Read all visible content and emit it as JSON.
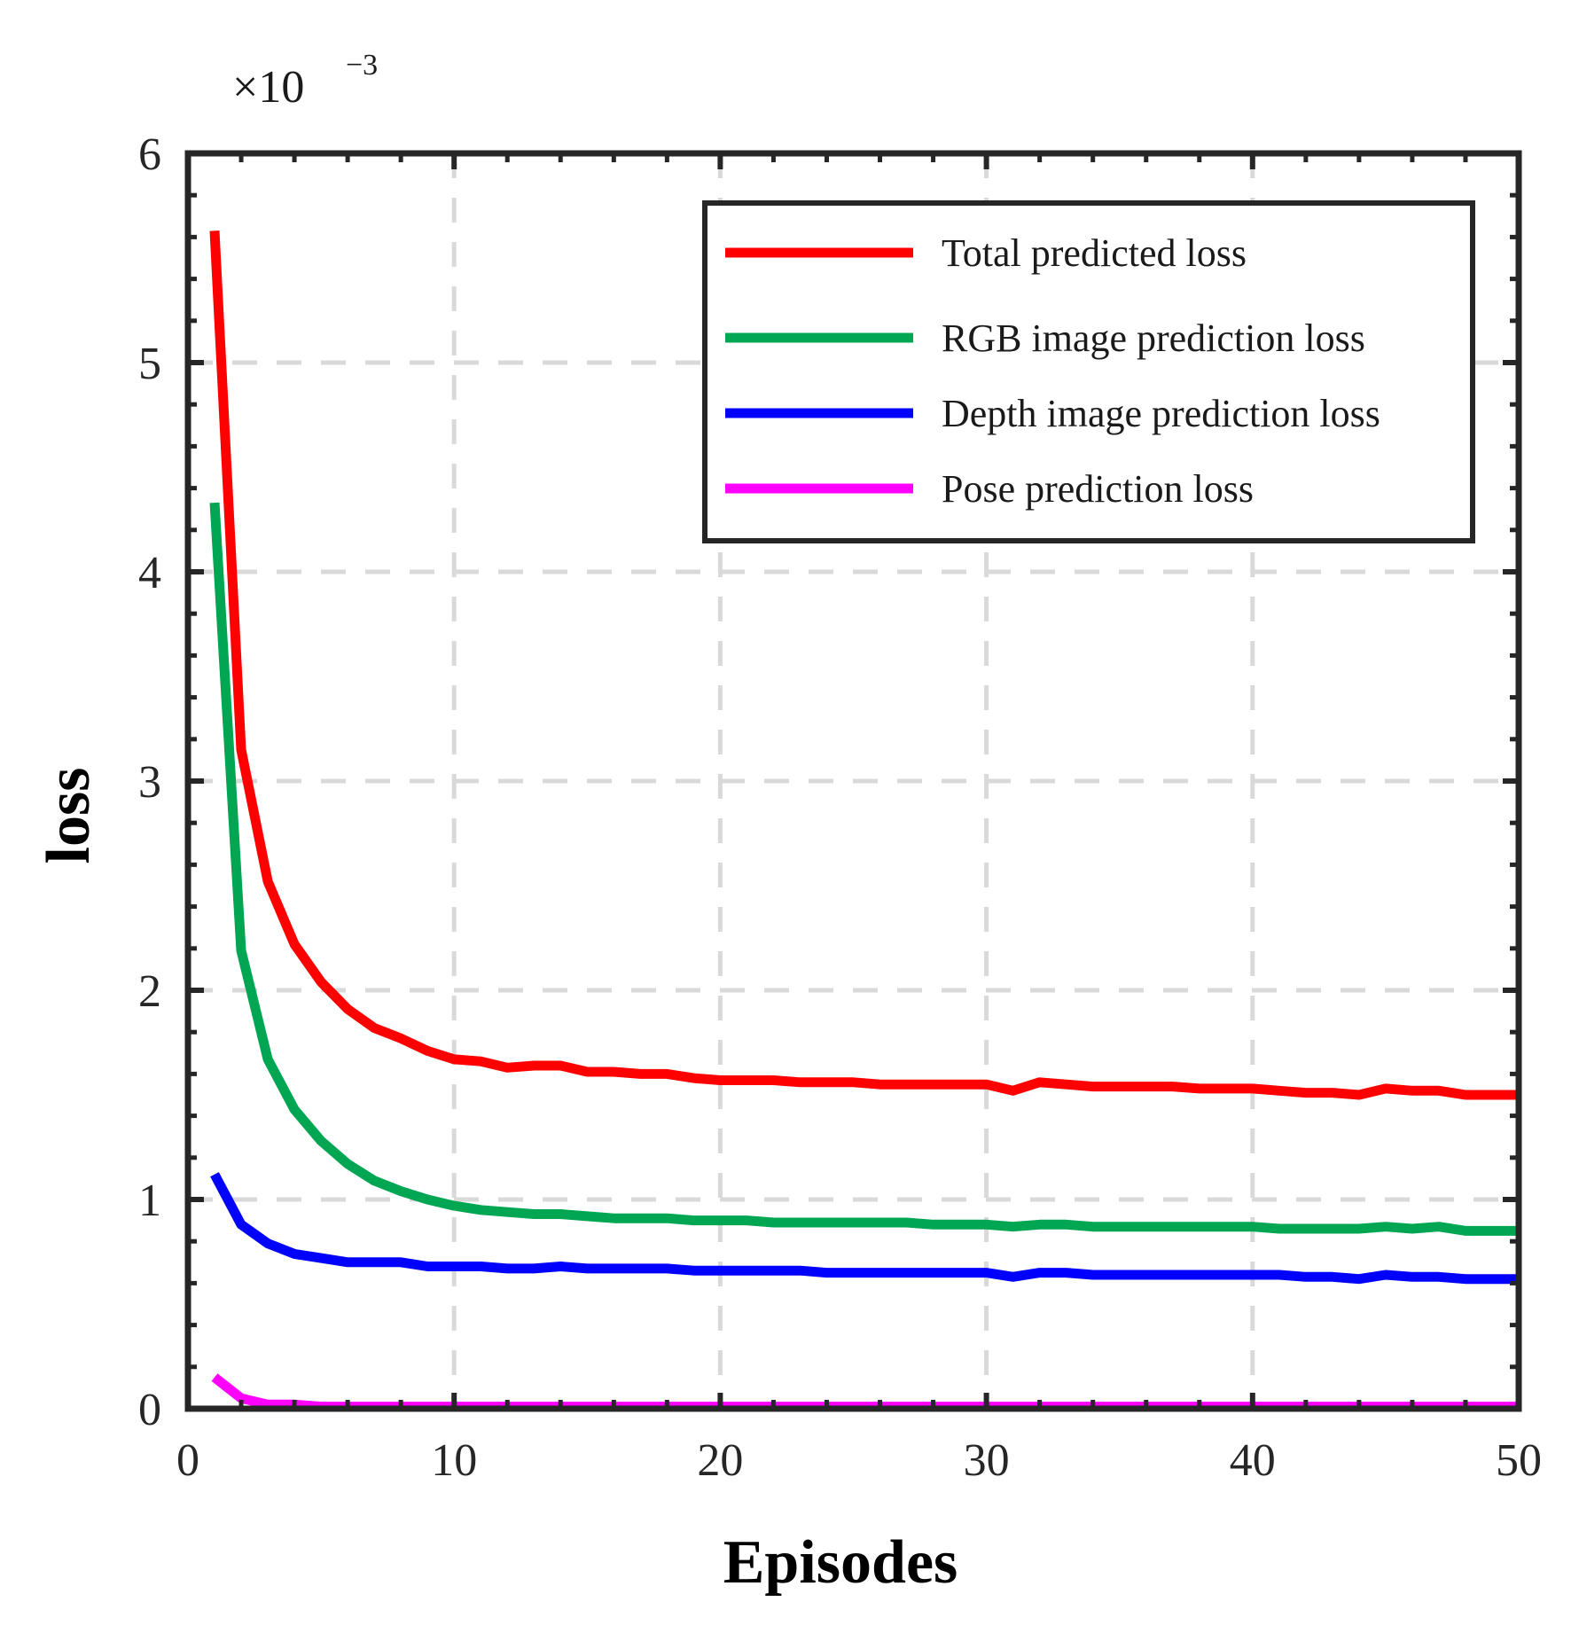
{
  "chart_data": {
    "type": "line",
    "title": "",
    "xlabel": "Episodes",
    "ylabel": "loss",
    "xlim": [
      0,
      50
    ],
    "ylim": [
      0,
      6
    ],
    "y_scale_label": "×10",
    "y_scale_exponent": "−3",
    "xticks": [
      "0",
      "10",
      "20",
      "30",
      "40",
      "50"
    ],
    "yticks": [
      "0",
      "1",
      "2",
      "3",
      "4",
      "5",
      "6"
    ],
    "grid": true,
    "legend_position": "top-right",
    "x": [
      1,
      2,
      3,
      4,
      5,
      6,
      7,
      8,
      9,
      10,
      11,
      12,
      13,
      14,
      15,
      16,
      17,
      18,
      19,
      20,
      21,
      22,
      23,
      24,
      25,
      26,
      27,
      28,
      29,
      30,
      31,
      32,
      33,
      34,
      35,
      36,
      37,
      38,
      39,
      40,
      41,
      42,
      43,
      44,
      45,
      46,
      47,
      48,
      49,
      50
    ],
    "series": [
      {
        "name": "Total predicted loss",
        "color": "#ff0000",
        "values": [
          5.63,
          3.15,
          2.52,
          2.22,
          2.04,
          1.91,
          1.82,
          1.77,
          1.71,
          1.67,
          1.66,
          1.63,
          1.64,
          1.64,
          1.61,
          1.61,
          1.6,
          1.6,
          1.58,
          1.57,
          1.57,
          1.57,
          1.56,
          1.56,
          1.56,
          1.55,
          1.55,
          1.55,
          1.55,
          1.55,
          1.52,
          1.56,
          1.55,
          1.54,
          1.54,
          1.54,
          1.54,
          1.53,
          1.53,
          1.53,
          1.52,
          1.51,
          1.51,
          1.5,
          1.53,
          1.52,
          1.52,
          1.5,
          1.5,
          1.5
        ]
      },
      {
        "name": "RGB image prediction loss",
        "color": "#00a651",
        "values": [
          4.33,
          2.19,
          1.67,
          1.43,
          1.28,
          1.17,
          1.09,
          1.04,
          1.0,
          0.97,
          0.95,
          0.94,
          0.93,
          0.93,
          0.92,
          0.91,
          0.91,
          0.91,
          0.9,
          0.9,
          0.9,
          0.89,
          0.89,
          0.89,
          0.89,
          0.89,
          0.89,
          0.88,
          0.88,
          0.88,
          0.87,
          0.88,
          0.88,
          0.87,
          0.87,
          0.87,
          0.87,
          0.87,
          0.87,
          0.87,
          0.86,
          0.86,
          0.86,
          0.86,
          0.87,
          0.86,
          0.87,
          0.85,
          0.85,
          0.85
        ]
      },
      {
        "name": "Depth image prediction loss",
        "color": "#0000ff",
        "values": [
          1.12,
          0.88,
          0.79,
          0.74,
          0.72,
          0.7,
          0.7,
          0.7,
          0.68,
          0.68,
          0.68,
          0.67,
          0.67,
          0.68,
          0.67,
          0.67,
          0.67,
          0.67,
          0.66,
          0.66,
          0.66,
          0.66,
          0.66,
          0.65,
          0.65,
          0.65,
          0.65,
          0.65,
          0.65,
          0.65,
          0.63,
          0.65,
          0.65,
          0.64,
          0.64,
          0.64,
          0.64,
          0.64,
          0.64,
          0.64,
          0.64,
          0.63,
          0.63,
          0.62,
          0.64,
          0.63,
          0.63,
          0.62,
          0.62,
          0.62
        ]
      },
      {
        "name": "Pose prediction loss",
        "color": "#ff00ff",
        "values": [
          0.15,
          0.05,
          0.02,
          0.02,
          0.01,
          0.01,
          0.01,
          0.01,
          0.01,
          0.01,
          0.01,
          0.01,
          0.01,
          0.01,
          0.01,
          0.01,
          0.01,
          0.01,
          0.01,
          0.01,
          0.01,
          0.01,
          0.01,
          0.01,
          0.01,
          0.01,
          0.01,
          0.01,
          0.01,
          0.01,
          0.01,
          0.01,
          0.01,
          0.01,
          0.01,
          0.01,
          0.01,
          0.01,
          0.01,
          0.01,
          0.01,
          0.01,
          0.01,
          0.01,
          0.01,
          0.01,
          0.01,
          0.01,
          0.01,
          0.01
        ]
      }
    ]
  }
}
